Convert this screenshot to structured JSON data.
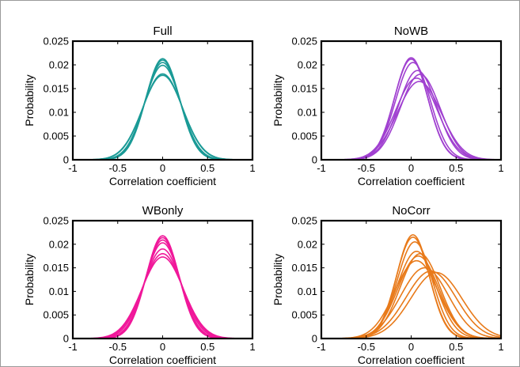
{
  "chart_data": [
    {
      "type": "line",
      "title": "Full",
      "xlabel": "Correlation coefficient",
      "ylabel": "Probability",
      "xlim": [
        -1,
        1
      ],
      "ylim": [
        0,
        0.025
      ],
      "xticks": [
        -1,
        -0.5,
        0,
        0.5,
        1
      ],
      "xtick_labels": [
        "-1",
        "-0.5",
        "0",
        "0.5",
        "1"
      ],
      "yticks": [
        0,
        0.005,
        0.01,
        0.015,
        0.02,
        0.025
      ],
      "ytick_labels": [
        "0",
        "0.005",
        "0.01",
        "0.015",
        "0.02",
        "0.025"
      ],
      "grid": false,
      "color": "#1a9a96",
      "series": [
        {
          "mean": 0.0,
          "peak": 0.0213
        },
        {
          "mean": 0.0,
          "peak": 0.021
        },
        {
          "mean": 0.0,
          "peak": 0.0205
        },
        {
          "mean": 0.0,
          "peak": 0.0199
        },
        {
          "mean": 0.0,
          "peak": 0.0181
        },
        {
          "mean": 0.0,
          "peak": 0.0178
        }
      ]
    },
    {
      "type": "line",
      "title": "NoWB",
      "xlabel": "Correlation coefficient",
      "ylabel": "Probability",
      "xlim": [
        -1,
        1
      ],
      "ylim": [
        0,
        0.025
      ],
      "xticks": [
        -1,
        -0.5,
        0,
        0.5,
        1
      ],
      "xtick_labels": [
        "-1",
        "-0.5",
        "0",
        "0.5",
        "1"
      ],
      "yticks": [
        0,
        0.005,
        0.01,
        0.015,
        0.02,
        0.025
      ],
      "ytick_labels": [
        "0",
        "0.005",
        "0.01",
        "0.015",
        "0.02",
        "0.025"
      ],
      "grid": false,
      "color": "#a040d0",
      "series": [
        {
          "mean": 0.0,
          "peak": 0.0215
        },
        {
          "mean": 0.0,
          "peak": 0.0212
        },
        {
          "mean": 0.02,
          "peak": 0.0205
        },
        {
          "mean": 0.07,
          "peak": 0.0188
        },
        {
          "mean": 0.1,
          "peak": 0.018
        },
        {
          "mean": 0.06,
          "peak": 0.0172
        },
        {
          "mean": 0.09,
          "peak": 0.0165
        }
      ]
    },
    {
      "type": "line",
      "title": "WBonly",
      "xlabel": "Correlation coefficient",
      "ylabel": "Probability",
      "xlim": [
        -1,
        1
      ],
      "ylim": [
        0,
        0.025
      ],
      "xticks": [
        -1,
        -0.5,
        0,
        0.5,
        1
      ],
      "xtick_labels": [
        "-1",
        "-0.5",
        "0",
        "0.5",
        "1"
      ],
      "yticks": [
        0,
        0.005,
        0.01,
        0.015,
        0.02,
        0.025
      ],
      "ytick_labels": [
        "0",
        "0.005",
        "0.01",
        "0.015",
        "0.02",
        "0.025"
      ],
      "grid": false,
      "color": "#f0189a",
      "series": [
        {
          "mean": 0.0,
          "peak": 0.0218
        },
        {
          "mean": 0.0,
          "peak": 0.0214
        },
        {
          "mean": 0.0,
          "peak": 0.0209
        },
        {
          "mean": 0.0,
          "peak": 0.0203
        },
        {
          "mean": 0.0,
          "peak": 0.019
        },
        {
          "mean": 0.0,
          "peak": 0.018
        },
        {
          "mean": 0.0,
          "peak": 0.0173
        }
      ]
    },
    {
      "type": "line",
      "title": "NoCorr",
      "xlabel": "Correlation coefficient",
      "ylabel": "Probability",
      "xlim": [
        -1,
        1
      ],
      "ylim": [
        0,
        0.025
      ],
      "xticks": [
        -1,
        -0.5,
        0,
        0.5,
        1
      ],
      "xtick_labels": [
        "-1",
        "-0.5",
        "0",
        "0.5",
        "1"
      ],
      "yticks": [
        0,
        0.005,
        0.01,
        0.015,
        0.02,
        0.025
      ],
      "ytick_labels": [
        "0",
        "0.005",
        "0.01",
        "0.015",
        "0.02",
        "0.025"
      ],
      "grid": false,
      "color": "#e87a1a",
      "series": [
        {
          "mean": 0.02,
          "peak": 0.022
        },
        {
          "mean": 0.02,
          "peak": 0.0215
        },
        {
          "mean": 0.04,
          "peak": 0.0205
        },
        {
          "mean": 0.06,
          "peak": 0.0185
        },
        {
          "mean": 0.1,
          "peak": 0.018
        },
        {
          "mean": 0.08,
          "peak": 0.0175
        },
        {
          "mean": 0.06,
          "peak": 0.0165
        },
        {
          "mean": 0.15,
          "peak": 0.015
        },
        {
          "mean": 0.22,
          "peak": 0.0143
        },
        {
          "mean": 0.28,
          "peak": 0.014
        }
      ]
    }
  ]
}
